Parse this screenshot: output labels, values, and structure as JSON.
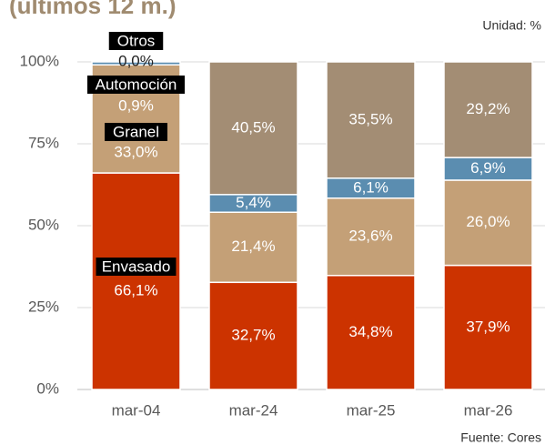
{
  "chart_data": {
    "type": "stacked_bar",
    "title": "(últimos 12 m.)",
    "unit_note": "Unidad: %",
    "source": "Fuente: Cores",
    "categories": [
      "mar-04",
      "mar-24",
      "mar-25",
      "mar-26"
    ],
    "series": [
      {
        "name": "Envasado",
        "color": "#cc3300",
        "values": [
          66.1,
          32.7,
          34.8,
          37.9
        ],
        "value_labels": [
          "66,1%",
          "32,7%",
          "34,8%",
          "37,9%"
        ]
      },
      {
        "name": "Granel",
        "color": "#c4a077",
        "values": [
          33.0,
          21.4,
          23.6,
          26.0
        ],
        "value_labels": [
          "33,0%",
          "21,4%",
          "23,6%",
          "26,0%"
        ]
      },
      {
        "name": "Automoción",
        "color": "#5b8db0",
        "values": [
          0.9,
          5.4,
          6.1,
          6.9
        ],
        "value_labels": [
          "0,9%",
          "5,4%",
          "6,1%",
          "6,9%"
        ]
      },
      {
        "name": "Otros",
        "color": "#a38d74",
        "values": [
          0.0,
          40.5,
          35.5,
          29.2
        ],
        "value_labels": [
          "0,0%",
          "40,5%",
          "35,5%",
          "29,2%"
        ]
      }
    ],
    "ylim": [
      0,
      100
    ],
    "yticks": [
      {
        "value": 0,
        "label": "0%"
      },
      {
        "value": 25,
        "label": "25%"
      },
      {
        "value": 50,
        "label": "50%"
      },
      {
        "value": 75,
        "label": "75%"
      },
      {
        "value": 100,
        "label": "100%"
      }
    ],
    "grid": true
  }
}
